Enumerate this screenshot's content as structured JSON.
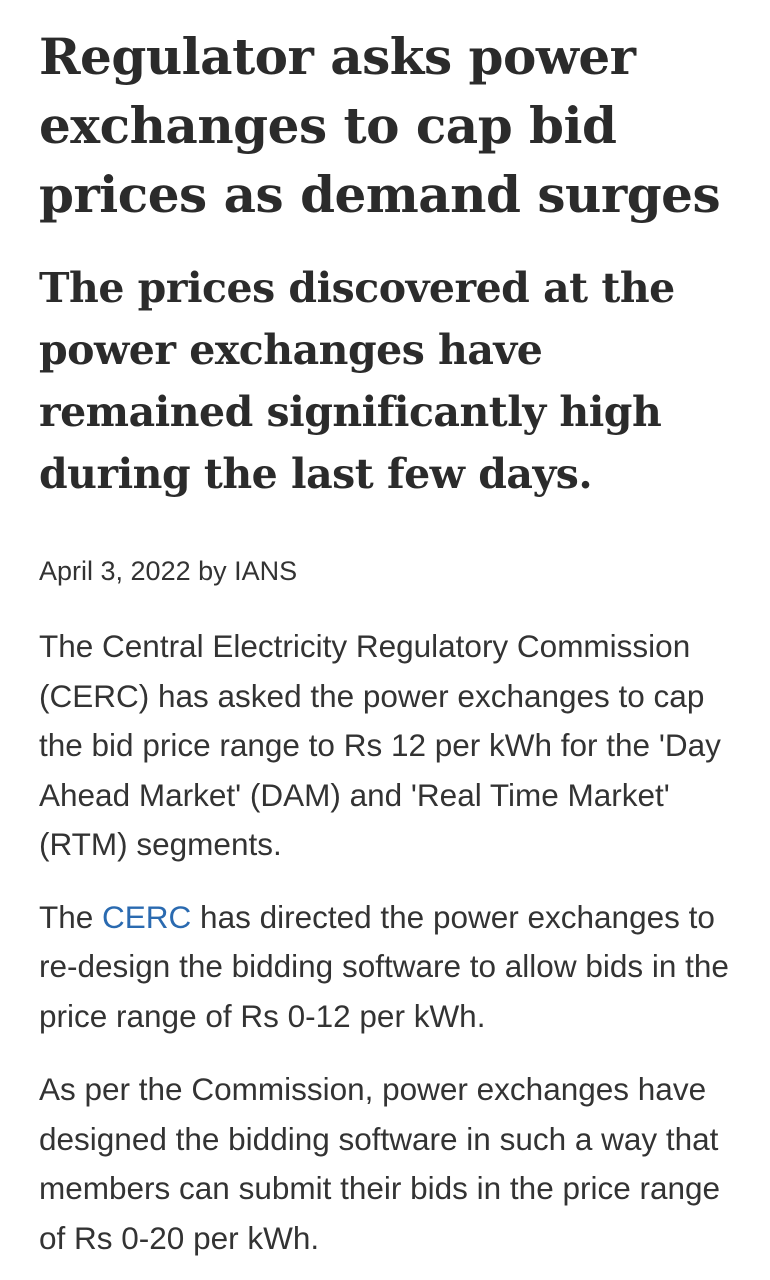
{
  "article": {
    "headline": "Regulator asks power exchanges to cap bid prices as demand surges",
    "subheadline": "The prices discovered at the power exchanges have remained significantly high during the last few days.",
    "byline": "April 3, 2022 by IANS",
    "paragraph1": "The Central Electricity Regulatory Commission (CERC) has asked the power exchanges to cap the bid price range to Rs 12 per kWh for the 'Day Ahead Market' (DAM) and 'Real Time Market' (RTM) segments.",
    "paragraph2": {
      "before": "The ",
      "link": "CERC",
      "after": " has directed the power exchanges to re-design the bidding software to allow bids in the price range of Rs 0-12 per kWh."
    },
    "paragraph3": "As per the Commission, power exchanges have designed the bidding software in such a way that members can submit their bids in the price range of Rs 0-20 per kWh."
  },
  "colors": {
    "text": "#333333",
    "heading": "#2b2b2b",
    "link": "#2a6ab0"
  }
}
